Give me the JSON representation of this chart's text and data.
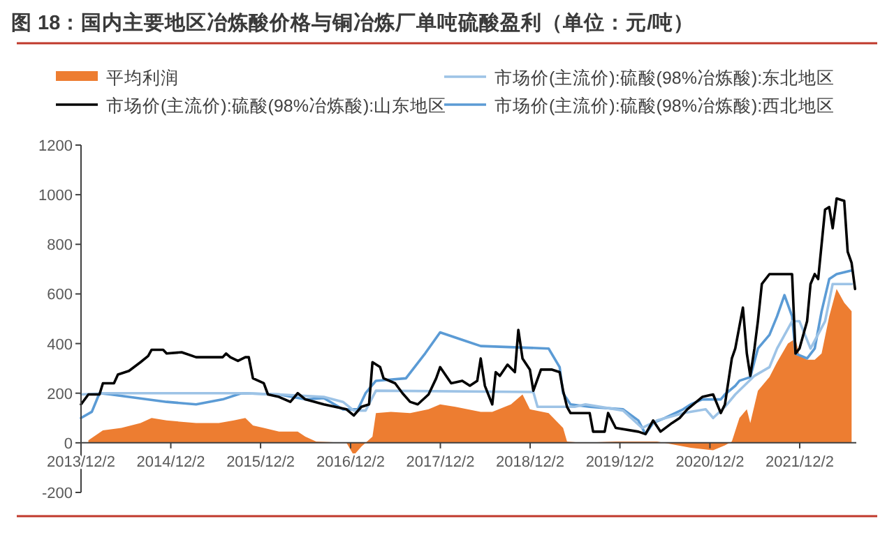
{
  "chart_data": {
    "type": "line",
    "title": "图 18：国内主要地区冶炼酸价格与铜冶炼厂单吨硫酸盈利（单位：元/吨）",
    "xlim": [
      "2013-12-02",
      "2022-07-20"
    ],
    "xticks": [
      {
        "value": "2013-12-02",
        "label": "2013/12/2"
      },
      {
        "value": "2014-12-02",
        "label": "2014/12/2"
      },
      {
        "value": "2015-12-02",
        "label": "2015/12/2"
      },
      {
        "value": "2016-12-02",
        "label": "2016/12/2"
      },
      {
        "value": "2017-12-02",
        "label": "2017/12/2"
      },
      {
        "value": "2018-12-02",
        "label": "2018/12/2"
      },
      {
        "value": "2019-12-02",
        "label": "2019/12/2"
      },
      {
        "value": "2020-12-02",
        "label": "2020/12/2"
      },
      {
        "value": "2021-12-02",
        "label": "2021/12/2"
      }
    ],
    "ylim": [
      -200,
      1200
    ],
    "yticks": [
      -200,
      0,
      200,
      400,
      600,
      800,
      1000,
      1200
    ],
    "legend": "top",
    "series": [
      {
        "name": "平均利润",
        "type": "area",
        "color": "#ed7d31",
        "x": [
          "2014-01-01",
          "2014-03-01",
          "2014-05-15",
          "2014-08-01",
          "2014-09-15",
          "2014-11-15",
          "2015-03-15",
          "2015-06-15",
          "2015-08-15",
          "2015-10-01",
          "2015-11-01",
          "2015-12-15",
          "2016-02-15",
          "2016-05-01",
          "2016-06-01",
          "2016-07-15",
          "2016-11-15",
          "2016-12-15",
          "2017-01-15",
          "2017-03-01",
          "2017-03-15",
          "2017-05-15",
          "2017-08-01",
          "2017-10-15",
          "2017-12-01",
          "2018-02-01",
          "2018-05-15",
          "2018-07-01",
          "2018-09-15",
          "2018-11-01",
          "2018-12-01",
          "2019-02-15",
          "2019-04-15",
          "2019-05-01",
          "2019-07-01",
          "2019-11-15",
          "2020-05-01",
          "2020-09-15",
          "2020-12-15",
          "2021-02-01",
          "2021-03-01",
          "2021-04-01",
          "2021-05-01",
          "2021-05-15",
          "2021-06-15",
          "2021-08-01",
          "2021-09-01",
          "2021-10-15",
          "2021-11-15",
          "2021-12-01",
          "2022-01-01",
          "2022-02-01",
          "2022-03-01",
          "2022-04-01",
          "2022-05-01",
          "2022-06-01",
          "2022-07-01"
        ],
        "values": [
          10,
          50,
          60,
          80,
          100,
          90,
          80,
          80,
          90,
          100,
          70,
          60,
          45,
          45,
          25,
          5,
          0,
          -50,
          -15,
          25,
          120,
          125,
          120,
          135,
          155,
          145,
          125,
          125,
          155,
          195,
          135,
          120,
          60,
          5,
          0,
          5,
          5,
          -20,
          -30,
          -10,
          5,
          100,
          135,
          80,
          210,
          265,
          325,
          400,
          420,
          350,
          335,
          335,
          360,
          510,
          620,
          565,
          530
        ]
      },
      {
        "name": "市场价(主流价):硫酸(98%冶炼酸):山东地区",
        "color": "#000000",
        "x": [
          "2013-12-02",
          "2014-01-01",
          "2014-02-15",
          "2014-03-01",
          "2014-04-15",
          "2014-05-01",
          "2014-06-15",
          "2014-08-01",
          "2014-09-01",
          "2014-09-15",
          "2014-11-01",
          "2014-11-15",
          "2015-01-15",
          "2015-03-15",
          "2015-07-01",
          "2015-07-15",
          "2015-08-01",
          "2015-09-01",
          "2015-10-01",
          "2015-10-15",
          "2015-11-01",
          "2015-12-15",
          "2016-01-01",
          "2016-02-15",
          "2016-04-01",
          "2016-05-01",
          "2016-06-01",
          "2016-08-15",
          "2016-11-15",
          "2016-12-15",
          "2017-01-15",
          "2017-02-15",
          "2017-03-01",
          "2017-04-01",
          "2017-04-15",
          "2017-06-01",
          "2017-07-01",
          "2017-08-01",
          "2017-09-01",
          "2017-10-15",
          "2017-11-15",
          "2017-12-01",
          "2017-12-15",
          "2018-01-15",
          "2018-03-01",
          "2018-04-01",
          "2018-05-01",
          "2018-05-15",
          "2018-06-01",
          "2018-07-01",
          "2018-07-15",
          "2018-08-01",
          "2018-09-01",
          "2018-10-01",
          "2018-10-15",
          "2018-11-01",
          "2018-12-01",
          "2018-12-15",
          "2019-01-15",
          "2019-03-01",
          "2019-04-01",
          "2019-04-15",
          "2019-05-01",
          "2019-05-15",
          "2019-08-01",
          "2019-08-15",
          "2019-10-01",
          "2019-10-15",
          "2019-11-15",
          "2020-02-15",
          "2020-03-15",
          "2020-04-15",
          "2020-05-15",
          "2020-07-01",
          "2020-08-01",
          "2020-09-01",
          "2020-11-01",
          "2020-12-15",
          "2021-01-15",
          "2021-02-01",
          "2021-03-01",
          "2021-03-15",
          "2021-04-15",
          "2021-05-01",
          "2021-05-15",
          "2021-06-01",
          "2021-06-15",
          "2021-07-01",
          "2021-08-01",
          "2021-11-01",
          "2021-11-15",
          "2021-12-01",
          "2022-01-01",
          "2022-01-15",
          "2022-02-01",
          "2022-02-15",
          "2022-03-15",
          "2022-04-01",
          "2022-04-15",
          "2022-05-01",
          "2022-06-01",
          "2022-06-15",
          "2022-07-01",
          "2022-07-15"
        ],
        "values": [
          155,
          195,
          195,
          240,
          240,
          275,
          290,
          325,
          350,
          375,
          375,
          360,
          365,
          345,
          345,
          360,
          345,
          330,
          345,
          345,
          260,
          240,
          195,
          185,
          165,
          200,
          175,
          155,
          135,
          110,
          145,
          155,
          325,
          305,
          260,
          240,
          200,
          165,
          155,
          195,
          260,
          305,
          285,
          240,
          250,
          230,
          250,
          340,
          230,
          155,
          285,
          270,
          315,
          285,
          455,
          340,
          295,
          210,
          295,
          295,
          285,
          210,
          145,
          120,
          120,
          45,
          45,
          120,
          60,
          45,
          35,
          90,
          45,
          80,
          100,
          135,
          185,
          195,
          120,
          155,
          340,
          380,
          545,
          360,
          270,
          380,
          490,
          640,
          680,
          680,
          360,
          380,
          490,
          640,
          680,
          660,
          940,
          950,
          865,
          985,
          975,
          770,
          725,
          620
        ]
      },
      {
        "name": "市场价(主流价):硫酸(98%冶炼酸):东北地区",
        "color": "#9dc3e6",
        "x": [
          "2013-12-02",
          "2014-03-15",
          "2015-09-15",
          "2016-02-15",
          "2016-08-15",
          "2016-11-01",
          "2016-12-15",
          "2017-02-01",
          "2017-03-15",
          "2018-12-15",
          "2019-01-01",
          "2019-06-01",
          "2019-07-15",
          "2019-12-15",
          "2020-03-01",
          "2020-05-01",
          "2020-08-15",
          "2020-11-15",
          "2020-12-15",
          "2021-02-01",
          "2021-03-15",
          "2021-06-01",
          "2021-08-01",
          "2021-09-01",
          "2021-11-01",
          "2021-12-01",
          "2022-01-15",
          "2022-03-15",
          "2022-04-15",
          "2022-07-01"
        ],
        "values": [
          195,
          200,
          200,
          195,
          185,
          165,
          130,
          130,
          210,
          205,
          145,
          145,
          155,
          130,
          60,
          90,
          120,
          135,
          100,
          145,
          195,
          270,
          305,
          380,
          490,
          490,
          380,
          490,
          640,
          640
        ]
      },
      {
        "name": "市场价(主流价):硫酸(98%冶炼酸):西北地区",
        "color": "#5b9bd5",
        "x": [
          "2013-12-02",
          "2014-01-15",
          "2014-02-15",
          "2014-04-01",
          "2014-11-15",
          "2015-03-15",
          "2015-07-01",
          "2015-09-15",
          "2016-02-15",
          "2016-06-01",
          "2016-08-15",
          "2016-11-01",
          "2017-01-01",
          "2017-02-01",
          "2017-03-15",
          "2017-07-15",
          "2017-10-01",
          "2017-12-01",
          "2018-03-01",
          "2018-05-15",
          "2019-02-15",
          "2019-04-01",
          "2019-04-15",
          "2019-05-15",
          "2019-08-01",
          "2019-12-15",
          "2020-02-15",
          "2020-03-15",
          "2020-04-15",
          "2020-06-01",
          "2020-08-15",
          "2020-09-15",
          "2020-11-01",
          "2021-01-15",
          "2021-02-01",
          "2021-03-15",
          "2021-04-01",
          "2021-05-15",
          "2021-06-15",
          "2021-08-01",
          "2021-09-01",
          "2021-10-01",
          "2021-11-01",
          "2021-11-15",
          "2022-01-01",
          "2022-02-01",
          "2022-03-01",
          "2022-04-01",
          "2022-05-01",
          "2022-07-01"
        ],
        "values": [
          100,
          125,
          200,
          195,
          165,
          155,
          175,
          200,
          195,
          175,
          180,
          135,
          135,
          200,
          250,
          260,
          360,
          445,
          415,
          390,
          380,
          305,
          200,
          155,
          145,
          135,
          90,
          35,
          80,
          100,
          135,
          155,
          175,
          175,
          195,
          230,
          250,
          265,
          380,
          435,
          510,
          595,
          510,
          360,
          340,
          380,
          530,
          660,
          680,
          695
        ]
      }
    ]
  }
}
